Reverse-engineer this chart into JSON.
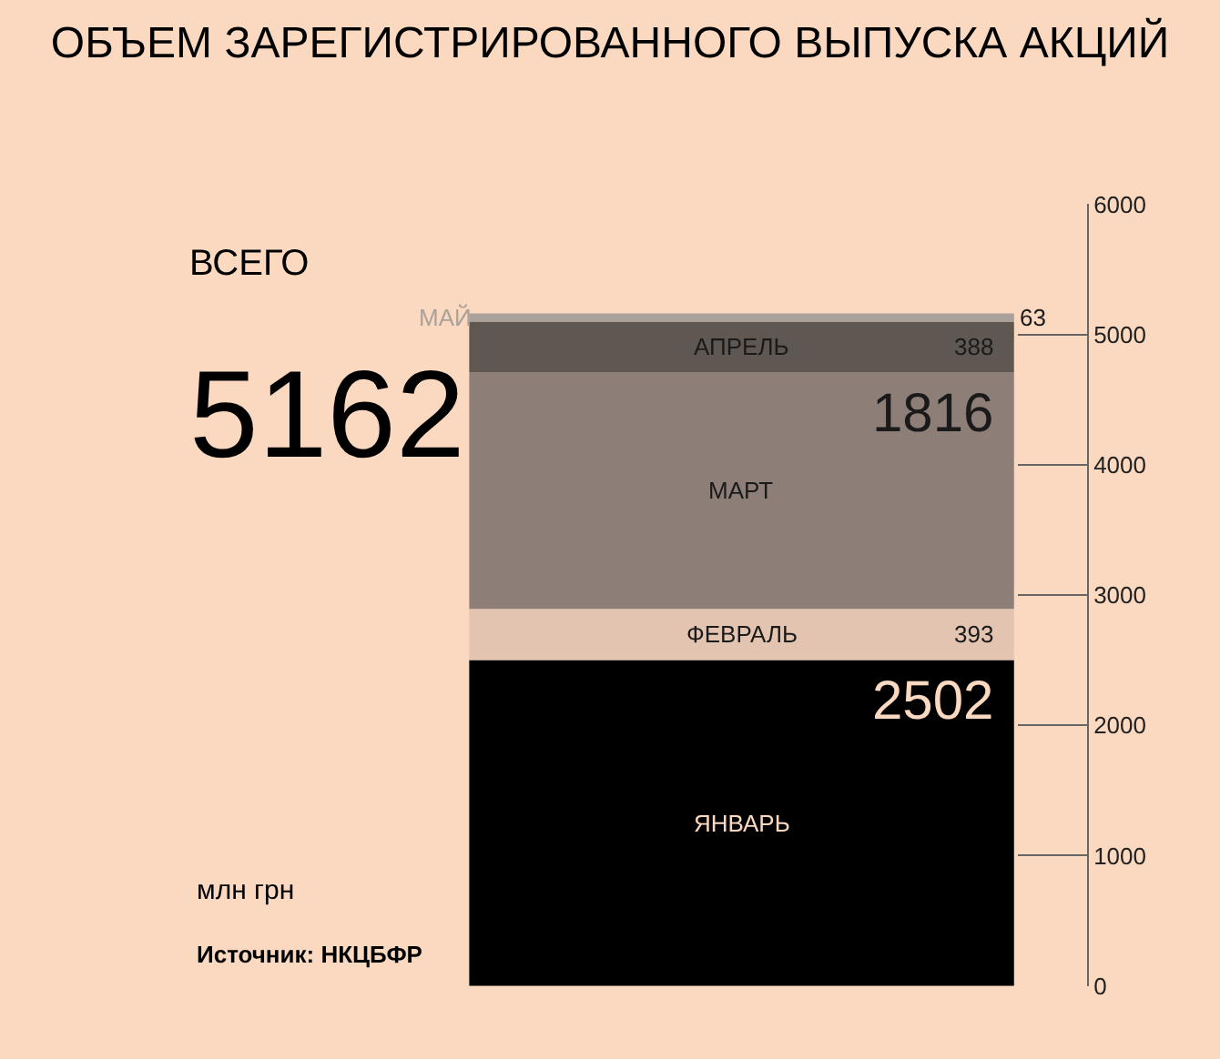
{
  "chart_data": {
    "type": "bar",
    "stacked": true,
    "title": "ОБЪЕМ ЗАРЕГИСТРИРОВАННОГО ВЫПУСКА АКЦИЙ",
    "categories": [
      null
    ],
    "series": [
      {
        "name": "ЯНВАРЬ",
        "color": "#000000",
        "values": [
          2502
        ]
      },
      {
        "name": "ФЕВРАЛЬ",
        "color": "#e3c4b1",
        "values": [
          393
        ]
      },
      {
        "name": "МАРТ",
        "color": "#8d7f77",
        "values": [
          1816
        ]
      },
      {
        "name": "АПРЕЛЬ",
        "color": "#5f5752",
        "values": [
          388
        ]
      },
      {
        "name": "МАЙ",
        "color": "#aaa19b",
        "values": [
          63
        ]
      }
    ],
    "data_labels": true,
    "totals": [
      "5162"
    ],
    "ylim": [
      0,
      6000
    ],
    "yticks": [
      0,
      1000,
      2000,
      3000,
      4000,
      5000,
      6000
    ],
    "grid": false,
    "legend": false,
    "annotations": [
      "ВСЕГО",
      "млн грн",
      "Источник: НКЦБФР"
    ]
  }
}
